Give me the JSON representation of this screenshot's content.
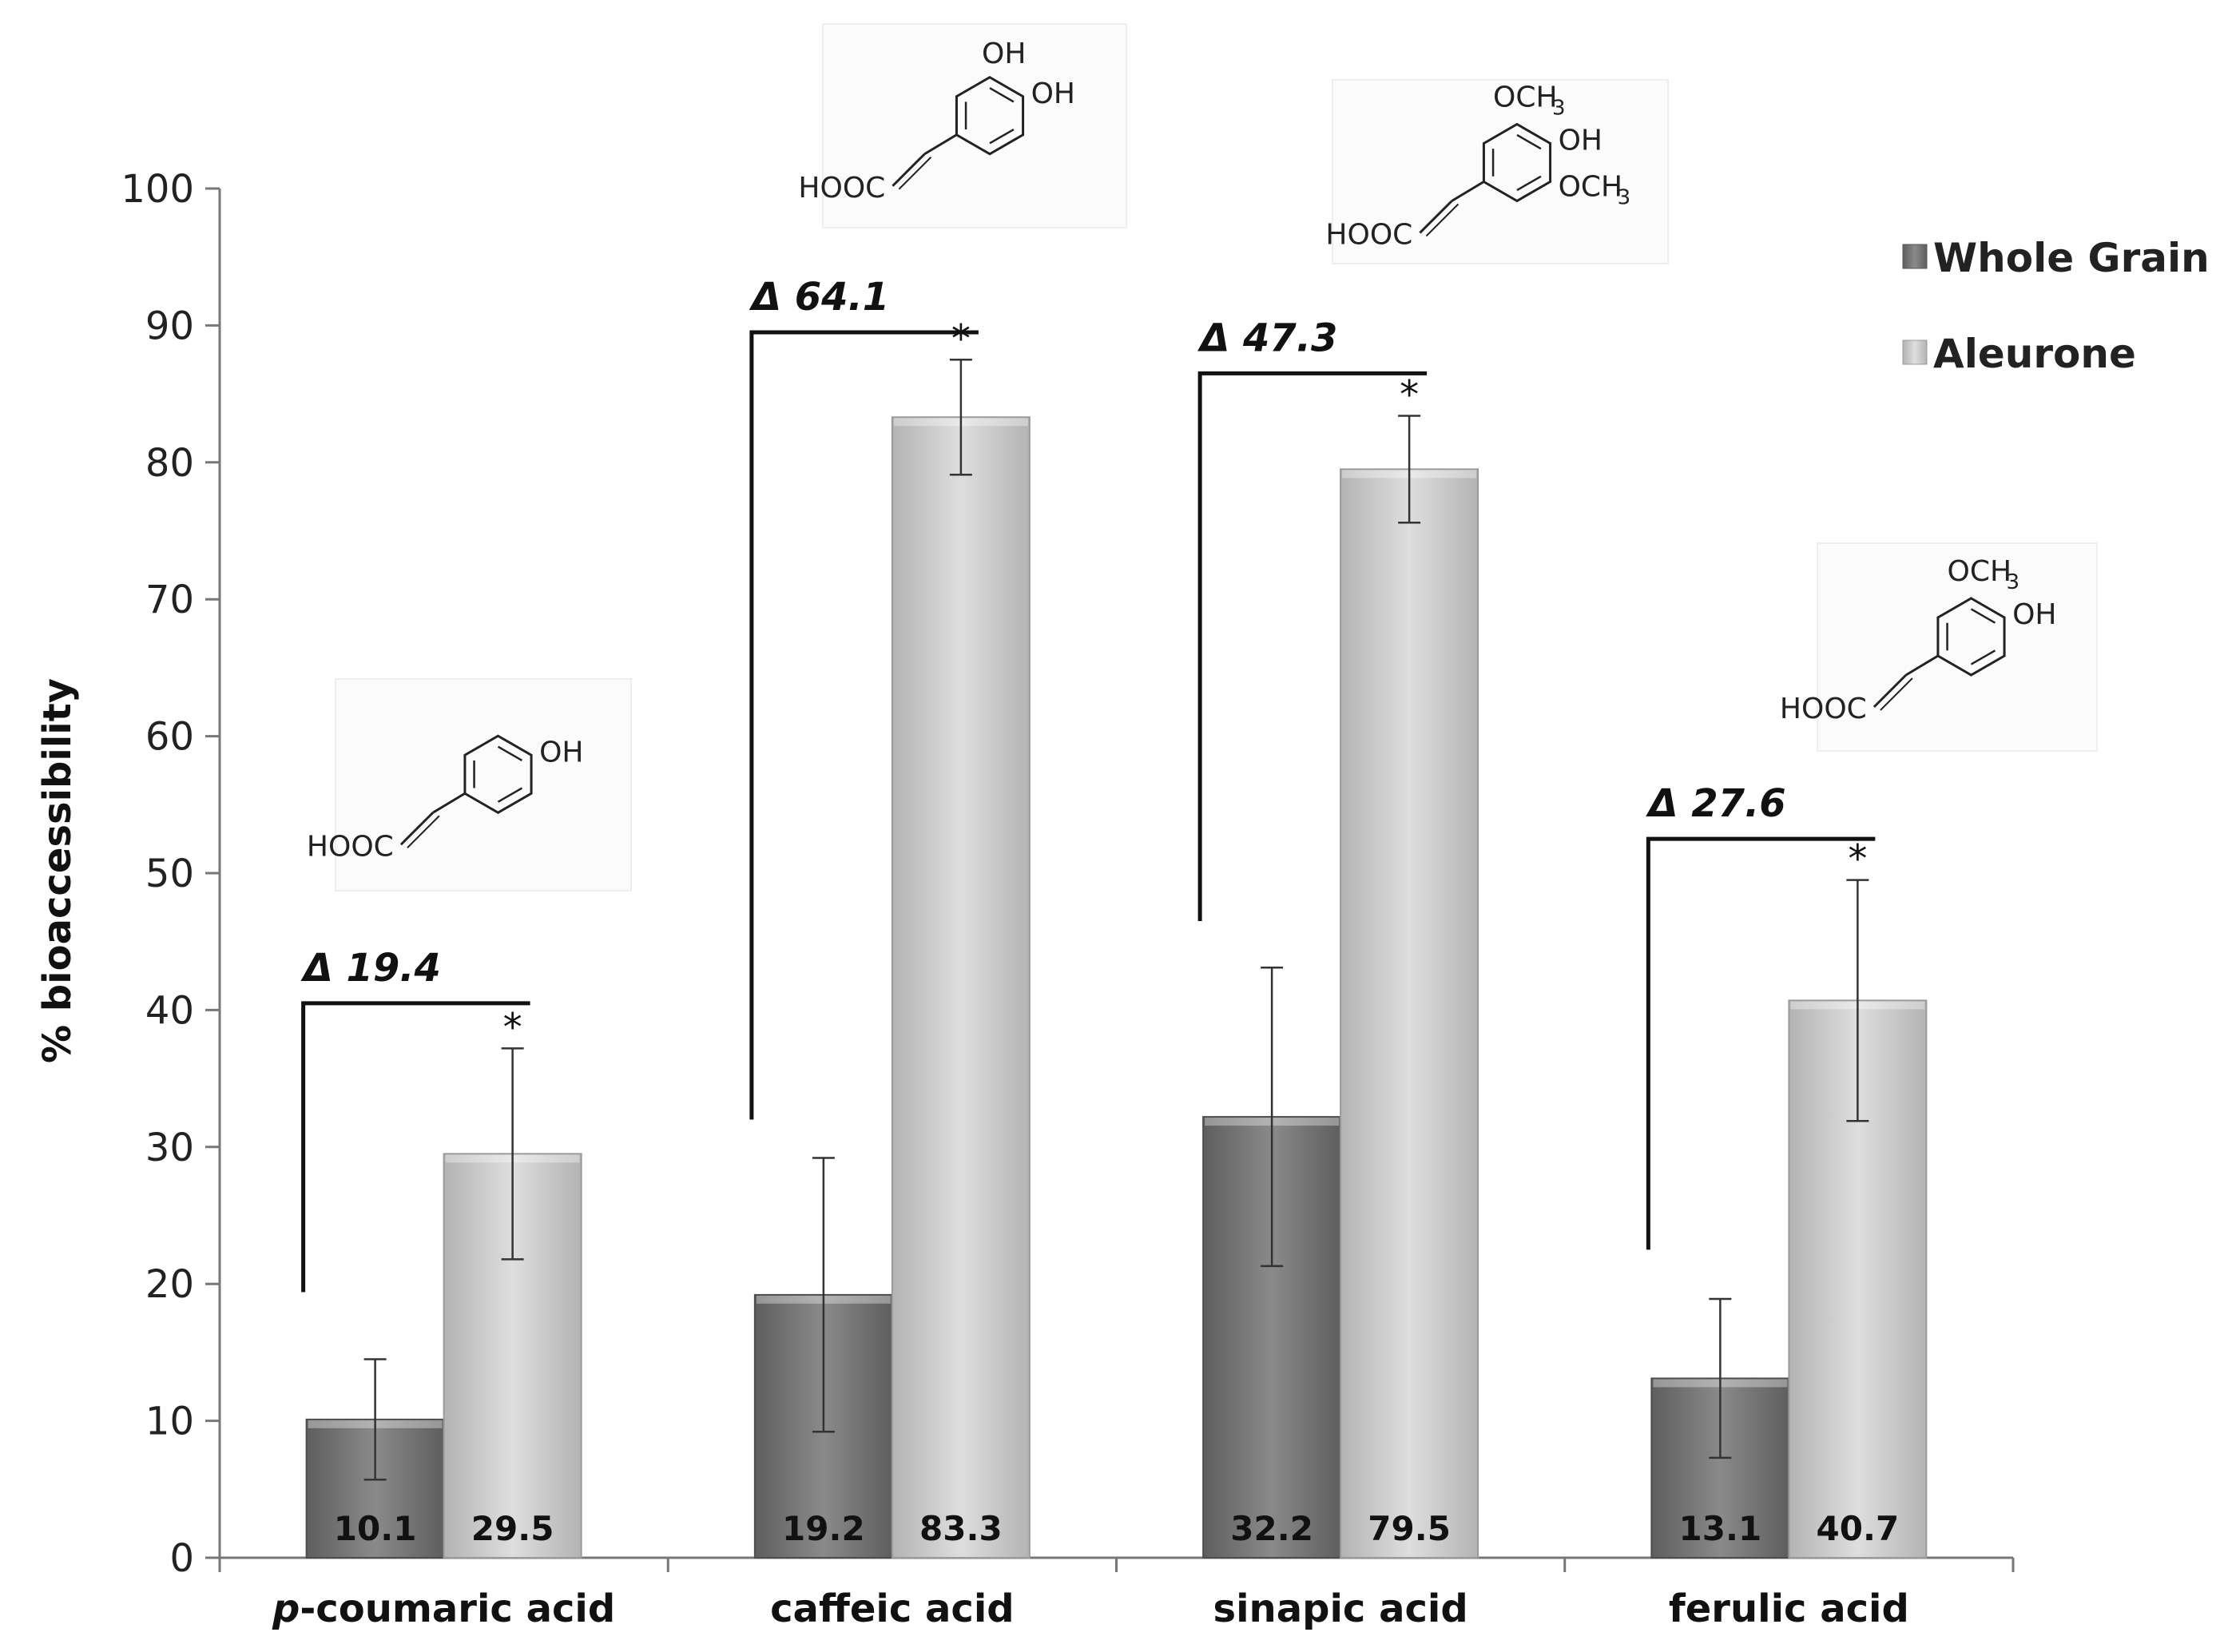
{
  "chart_data": {
    "type": "bar",
    "ylabel": "% bioaccessibility",
    "xlabel": "",
    "ylim": [
      0,
      100
    ],
    "yticks": [
      0,
      10,
      20,
      30,
      40,
      50,
      60,
      70,
      80,
      90,
      100
    ],
    "grid": false,
    "legend_position": "top-right",
    "categories": [
      {
        "label": "p-coumaric acid",
        "prefix": "p",
        "rest": "-coumaric acid"
      },
      {
        "label": "caffeic acid",
        "prefix": "",
        "rest": "caffeic acid"
      },
      {
        "label": "sinapic acid",
        "prefix": "",
        "rest": "sinapic acid"
      },
      {
        "label": "ferulic acid",
        "prefix": "",
        "rest": "ferulic acid"
      }
    ],
    "series": [
      {
        "name": "Whole Grain",
        "color": "#7a7a7a",
        "values": [
          10.1,
          19.2,
          32.2,
          13.1
        ],
        "value_labels": [
          "10.1",
          "19.2",
          "32.2",
          "13.1"
        ],
        "errors": [
          4.4,
          10.0,
          10.9,
          5.8
        ]
      },
      {
        "name": "Aleurone",
        "color": "#c9c9c9",
        "values": [
          29.5,
          83.3,
          79.5,
          40.7
        ],
        "value_labels": [
          "29.5",
          "83.3",
          "79.5",
          "40.7"
        ],
        "errors": [
          7.7,
          4.2,
          3.9,
          8.8
        ]
      }
    ],
    "annotations": [
      {
        "category": 0,
        "delta": "Δ 19.4",
        "marker": "*",
        "bracket_low": 19.4,
        "bracket_high": 40.5
      },
      {
        "category": 1,
        "delta": "Δ 64.1",
        "marker": "*",
        "bracket_low": 32.0,
        "bracket_high": 89.5
      },
      {
        "category": 2,
        "delta": "Δ 47.3",
        "marker": "*",
        "bracket_low": 46.5,
        "bracket_high": 86.5
      },
      {
        "category": 3,
        "delta": "Δ 27.6",
        "marker": "*",
        "bracket_low": 22.5,
        "bracket_high": 52.5
      }
    ],
    "structures": [
      {
        "category": 0,
        "groups": [
          "OH",
          "HOOC"
        ]
      },
      {
        "category": 1,
        "groups": [
          "OH",
          "OH",
          "HOOC"
        ]
      },
      {
        "category": 2,
        "groups": [
          "OCH",
          "3",
          "OH",
          "OCH",
          "3",
          "HOOC"
        ]
      },
      {
        "category": 3,
        "groups": [
          "OCH",
          "3",
          "OH",
          "HOOC"
        ]
      }
    ]
  }
}
